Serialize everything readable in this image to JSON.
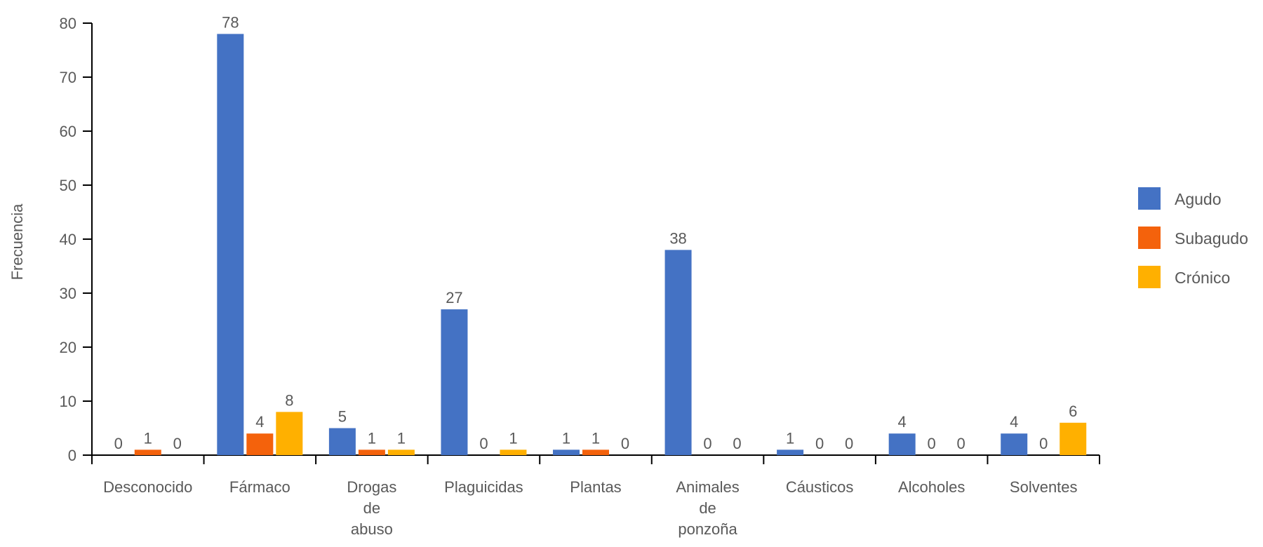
{
  "chart_data": {
    "type": "bar",
    "title": "",
    "xlabel": "",
    "ylabel": "Frecuencia",
    "ylim": [
      0,
      80
    ],
    "yticks": [
      0,
      10,
      20,
      30,
      40,
      50,
      60,
      70,
      80
    ],
    "grid": false,
    "legend_position": "right",
    "categories": [
      [
        "Desconocido"
      ],
      [
        "Fármaco"
      ],
      [
        "Drogas",
        "de",
        "abuso"
      ],
      [
        "Plaguicidas"
      ],
      [
        "Plantas"
      ],
      [
        "Animales",
        "de",
        "ponzoña"
      ],
      [
        "Cáusticos"
      ],
      [
        "Alcoholes"
      ],
      [
        "Solventes"
      ]
    ],
    "series": [
      {
        "name": "Agudo",
        "color": "#4472C4",
        "values": [
          0,
          78,
          5,
          27,
          1,
          38,
          1,
          4,
          4
        ]
      },
      {
        "name": "Subagudo",
        "color": "#F4620C",
        "values": [
          1,
          4,
          1,
          0,
          1,
          0,
          0,
          0,
          0
        ]
      },
      {
        "name": "Crónico",
        "color": "#FFB000",
        "values": [
          0,
          8,
          1,
          1,
          0,
          0,
          0,
          0,
          6
        ]
      }
    ]
  }
}
